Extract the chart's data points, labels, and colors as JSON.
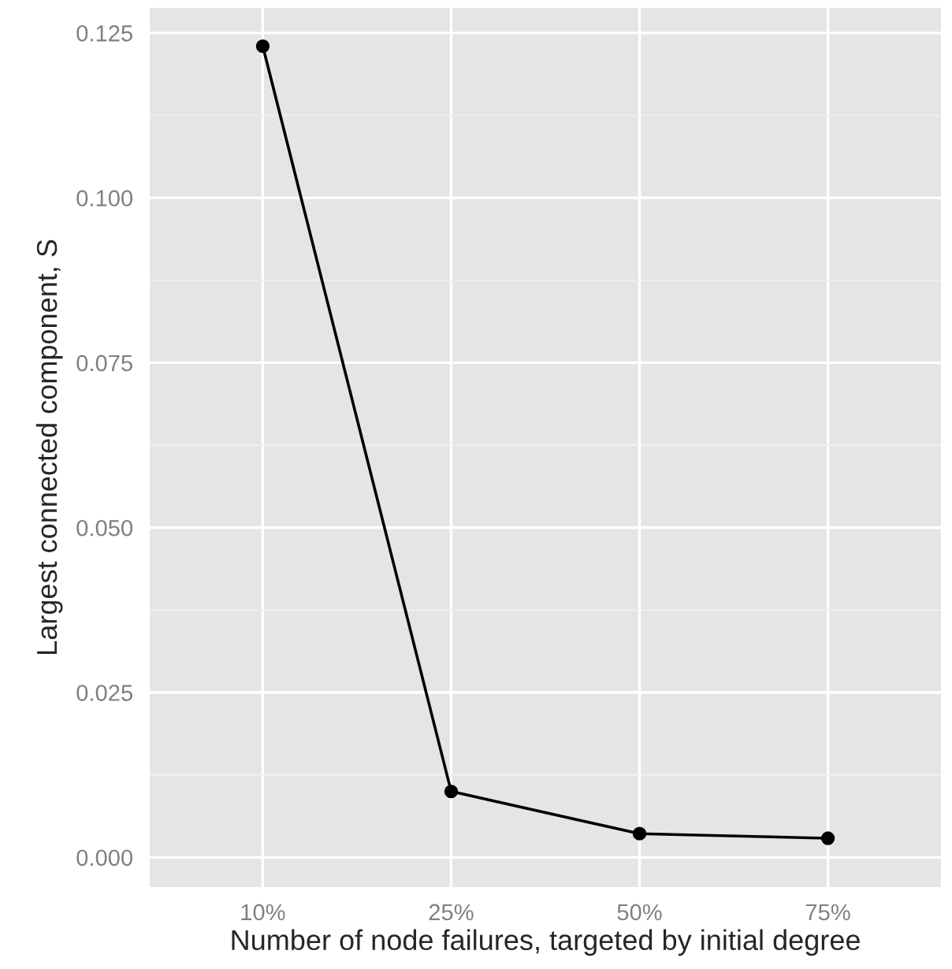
{
  "chart_data": {
    "type": "line",
    "xlabel": "Number of node failures, targeted by initial degree",
    "ylabel": "Largest connected component, S",
    "categories": [
      "10%",
      "25%",
      "50%",
      "75%"
    ],
    "series": [
      {
        "color": "#000000",
        "values": [
          0.123,
          0.01,
          0.0036,
          0.0029
        ]
      }
    ],
    "ylim": [
      -0.0045,
      0.1288
    ],
    "yticks": [
      {
        "value": 0,
        "label": "0.000"
      },
      {
        "value": 0.025,
        "label": "0.025"
      },
      {
        "value": 0.05,
        "label": "0.050"
      },
      {
        "value": 0.075,
        "label": "0.075"
      },
      {
        "value": 0.1,
        "label": "0.100"
      },
      {
        "value": 0.125,
        "label": "0.125"
      }
    ],
    "grid": true,
    "marker": "circle",
    "line_style": "solid"
  }
}
